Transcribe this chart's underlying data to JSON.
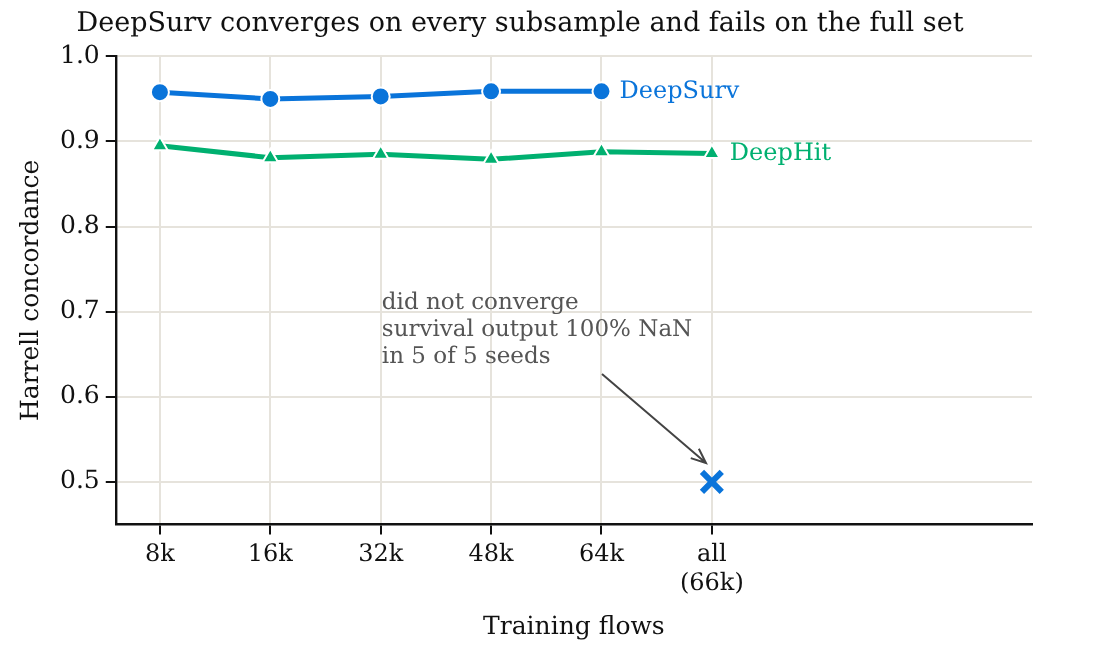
{
  "chart_data": {
    "type": "line",
    "title": "DeepSurv converges on every subsample and fails on the full set",
    "xlabel": "Training flows",
    "ylabel": "Harrell concordance",
    "categories": [
      "8k",
      "16k",
      "32k",
      "48k",
      "64k",
      "all\n(66k)"
    ],
    "series": [
      {
        "name": "DeepSurv",
        "color": "#0a74da",
        "marker": "circle",
        "values": [
          0.958,
          0.95,
          0.953,
          0.959,
          0.959,
          null
        ]
      },
      {
        "name": "DeepHit",
        "color": "#00b070",
        "marker": "triangle",
        "values": [
          0.895,
          0.881,
          0.885,
          0.879,
          0.888,
          0.886
        ]
      },
      {
        "type": "scatter",
        "color": "#0a74da",
        "marker": "cross",
        "x": [
          "all\n(66k)"
        ],
        "values": [
          0.5
        ]
      }
    ],
    "ylim": [
      0.45,
      1.0
    ],
    "yticks": [
      0.5,
      0.6,
      0.7,
      0.8,
      0.9,
      {
        "value": 1.0,
        "label": "1.0"
      }
    ],
    "grid": true,
    "legend": false,
    "annotations": [
      "did not converge\nsurvival output 100% NaN\nin 5 of 5 seeds"
    ]
  }
}
